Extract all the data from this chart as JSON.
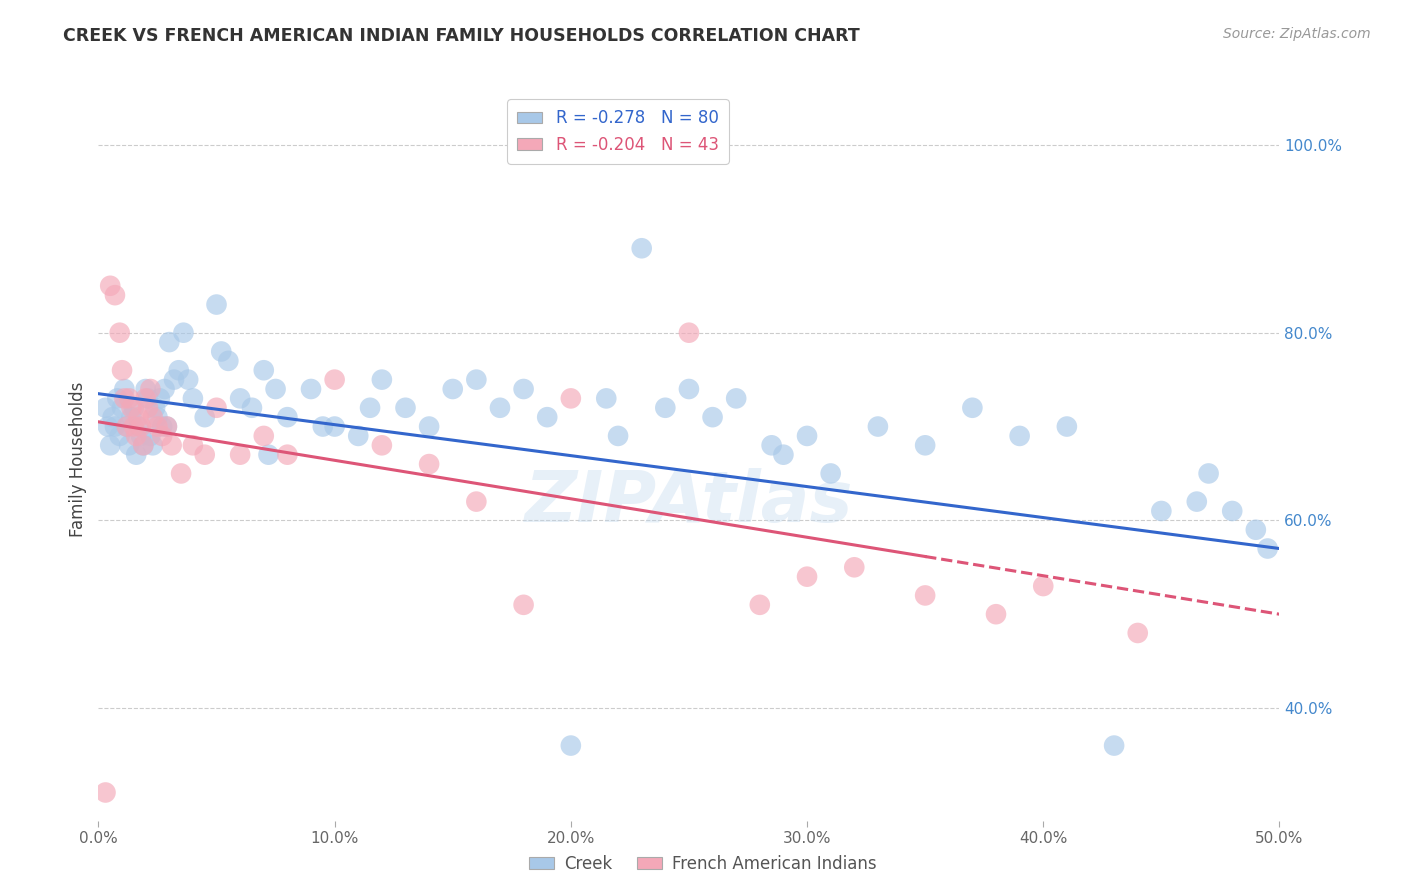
{
  "title": "CREEK VS FRENCH AMERICAN INDIAN FAMILY HOUSEHOLDS CORRELATION CHART",
  "source": "Source: ZipAtlas.com",
  "ylabel": "Family Households",
  "x_tick_labels": [
    "0.0%",
    "10.0%",
    "20.0%",
    "30.0%",
    "40.0%",
    "50.0%"
  ],
  "x_ticks": [
    0.0,
    10.0,
    20.0,
    30.0,
    40.0,
    50.0
  ],
  "y_tick_labels": [
    "100.0%",
    "80.0%",
    "60.0%",
    "40.0%"
  ],
  "y_ticks": [
    100.0,
    80.0,
    60.0,
    40.0
  ],
  "xlim": [
    0.0,
    50.0
  ],
  "ylim": [
    28.0,
    105.0
  ],
  "creek_R": -0.278,
  "creek_N": 80,
  "fai_R": -0.204,
  "fai_N": 43,
  "creek_color": "#a8c8e8",
  "fai_color": "#f4a8b8",
  "creek_line_color": "#3366cc",
  "fai_line_color": "#dd5577",
  "legend_label_creek": "Creek",
  "legend_label_fai": "French American Indians",
  "watermark": "ZIPAtlas",
  "creek_line_x0": 0.0,
  "creek_line_y0": 73.5,
  "creek_line_x1": 50.0,
  "creek_line_y1": 57.0,
  "fai_line_x0": 0.0,
  "fai_line_y0": 70.5,
  "fai_line_x1": 50.0,
  "fai_line_y1": 50.0,
  "fai_solid_end": 35.0,
  "creek_x": [
    0.3,
    0.4,
    0.5,
    0.6,
    0.7,
    0.8,
    0.9,
    1.0,
    1.1,
    1.2,
    1.3,
    1.4,
    1.5,
    1.6,
    1.7,
    1.8,
    1.9,
    2.0,
    2.1,
    2.2,
    2.3,
    2.4,
    2.5,
    2.6,
    2.7,
    2.8,
    2.9,
    3.0,
    3.2,
    3.4,
    3.6,
    3.8,
    4.0,
    4.5,
    5.0,
    5.5,
    6.0,
    6.5,
    7.0,
    7.5,
    8.0,
    9.0,
    10.0,
    11.0,
    12.0,
    13.0,
    14.0,
    15.0,
    16.0,
    17.0,
    18.0,
    19.0,
    20.0,
    21.5,
    22.0,
    23.0,
    24.0,
    25.0,
    26.0,
    27.0,
    28.5,
    29.0,
    30.0,
    31.0,
    33.0,
    35.0,
    37.0,
    39.0,
    41.0,
    43.0,
    45.0,
    46.5,
    47.0,
    48.0,
    49.0,
    49.5,
    5.2,
    7.2,
    9.5,
    11.5
  ],
  "creek_y": [
    72,
    70,
    68,
    71,
    70,
    73,
    69,
    72,
    74,
    70,
    68,
    71,
    72,
    67,
    70,
    69,
    68,
    74,
    73,
    69,
    68,
    72,
    71,
    73,
    70,
    74,
    70,
    79,
    75,
    76,
    80,
    75,
    73,
    71,
    83,
    77,
    73,
    72,
    76,
    74,
    71,
    74,
    70,
    69,
    75,
    72,
    70,
    74,
    75,
    72,
    74,
    71,
    36,
    73,
    69,
    89,
    72,
    74,
    71,
    73,
    68,
    67,
    69,
    65,
    70,
    68,
    72,
    69,
    70,
    36,
    61,
    62,
    65,
    61,
    59,
    57,
    78,
    67,
    70,
    72
  ],
  "fai_x": [
    0.3,
    0.5,
    0.7,
    0.9,
    1.0,
    1.1,
    1.2,
    1.3,
    1.4,
    1.5,
    1.6,
    1.7,
    1.8,
    1.9,
    2.0,
    2.1,
    2.2,
    2.3,
    2.5,
    2.7,
    2.9,
    3.1,
    3.5,
    4.0,
    4.5,
    5.0,
    6.0,
    7.0,
    8.0,
    10.0,
    12.0,
    14.0,
    16.0,
    18.0,
    20.0,
    25.0,
    28.0,
    30.0,
    32.0,
    35.0,
    38.0,
    40.0,
    44.0
  ],
  "fai_y": [
    31,
    85,
    84,
    80,
    76,
    73,
    70,
    73,
    72,
    70,
    69,
    71,
    70,
    68,
    73,
    72,
    74,
    71,
    70,
    69,
    70,
    68,
    65,
    68,
    67,
    72,
    67,
    69,
    67,
    75,
    68,
    66,
    62,
    51,
    73,
    80,
    51,
    54,
    55,
    52,
    50,
    53,
    48
  ]
}
